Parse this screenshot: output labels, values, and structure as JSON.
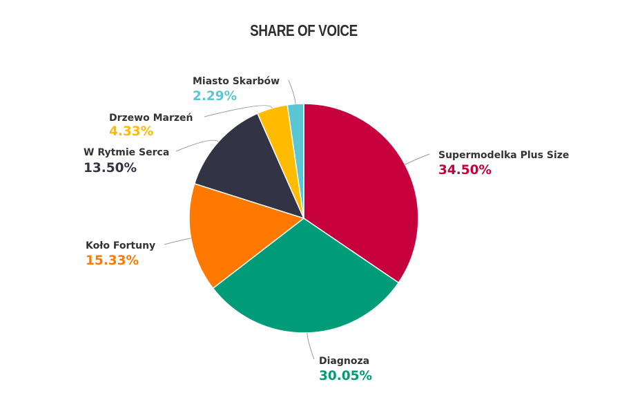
{
  "chart_data": {
    "type": "pie",
    "title": "SHARE OF VOICE",
    "slices": [
      {
        "name": "Supermodelka Plus Size",
        "value": 34.5,
        "label": "34.50%",
        "color": "#c5003c"
      },
      {
        "name": "Diagnoza",
        "value": 30.05,
        "label": "30.05%",
        "color": "#009c7a"
      },
      {
        "name": "Koło Fortuny",
        "value": 15.33,
        "label": "15.33%",
        "color": "#ff7800"
      },
      {
        "name": "W Rytmie Serca",
        "value": 13.5,
        "label": "13.50%",
        "color": "#323446"
      },
      {
        "name": "Drzewo Marzeń",
        "value": 4.33,
        "label": "4.33%",
        "color": "#ffbb00"
      },
      {
        "name": "Miasto Skarbów",
        "value": 2.29,
        "label": "2.29%",
        "color": "#5ac5d3"
      }
    ],
    "start_angle": "top (12 o'clock)",
    "direction": "clockwise"
  }
}
